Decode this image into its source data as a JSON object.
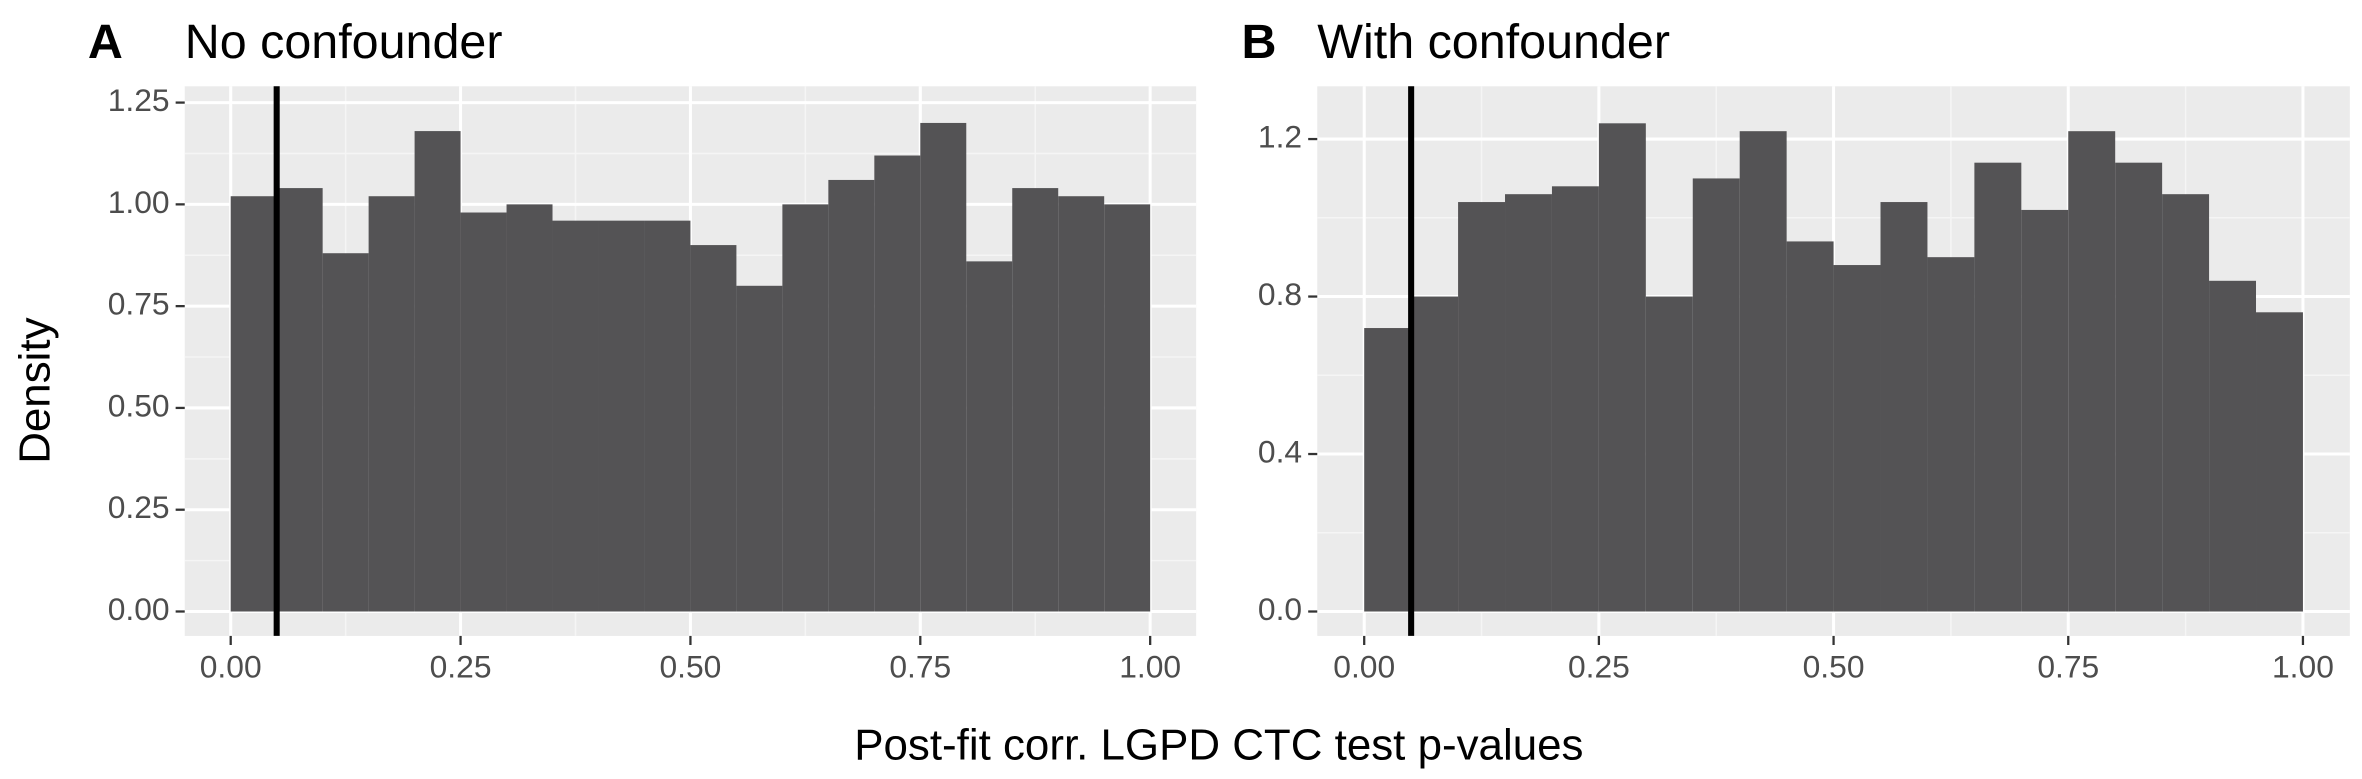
{
  "shared": {
    "x_label": "Post-fit corr. LGPD CTC test p-values",
    "y_label": "Density"
  },
  "chart_data": [
    {
      "type": "histogram",
      "tag": "A",
      "title": "No confounder",
      "color": "#545355",
      "grid": true,
      "bins": [
        0,
        0.05,
        0.1,
        0.15,
        0.2,
        0.25,
        0.3,
        0.35,
        0.4,
        0.45,
        0.5,
        0.55,
        0.6,
        0.65,
        0.7,
        0.75,
        0.8,
        0.85,
        0.9,
        0.95,
        1.0
      ],
      "values": [
        1.02,
        1.04,
        0.88,
        1.02,
        1.18,
        0.98,
        1.0,
        0.96,
        0.96,
        0.96,
        0.9,
        0.8,
        1.0,
        1.06,
        1.12,
        1.2,
        0.86,
        1.04,
        1.02,
        1.0
      ],
      "reference_line": 0.05,
      "xlim": [
        -0.05,
        1.05
      ],
      "ylim": [
        -0.06,
        1.29
      ],
      "xticks": [
        {
          "value": 0,
          "label": "0.00"
        },
        {
          "value": 0.25,
          "label": "0.25"
        },
        {
          "value": 0.5,
          "label": "0.50"
        },
        {
          "value": 0.75,
          "label": "0.75"
        },
        {
          "value": 1,
          "label": "1.00"
        }
      ],
      "yticks": [
        {
          "value": 0,
          "label": "0.00"
        },
        {
          "value": 0.25,
          "label": "0.25"
        },
        {
          "value": 0.5,
          "label": "0.50"
        },
        {
          "value": 0.75,
          "label": "0.75"
        },
        {
          "value": 1,
          "label": "1.00"
        },
        {
          "value": 1.25,
          "label": "1.25"
        }
      ]
    },
    {
      "type": "histogram",
      "tag": "B",
      "title": "With confounder",
      "color": "#545355",
      "grid": true,
      "bins": [
        0,
        0.05,
        0.1,
        0.15,
        0.2,
        0.25,
        0.3,
        0.35,
        0.4,
        0.45,
        0.5,
        0.55,
        0.6,
        0.65,
        0.7,
        0.75,
        0.8,
        0.85,
        0.9,
        0.95,
        1.0
      ],
      "values": [
        0.72,
        0.8,
        1.04,
        1.06,
        1.08,
        1.24,
        0.8,
        1.1,
        1.22,
        0.94,
        0.88,
        1.04,
        0.9,
        1.14,
        1.02,
        1.22,
        1.14,
        1.06,
        0.84,
        0.76
      ],
      "reference_line": 0.05,
      "xlim": [
        -0.05,
        1.05
      ],
      "ylim": [
        -0.062,
        1.334
      ],
      "xticks": [
        {
          "value": 0,
          "label": "0.00"
        },
        {
          "value": 0.25,
          "label": "0.25"
        },
        {
          "value": 0.5,
          "label": "0.50"
        },
        {
          "value": 0.75,
          "label": "0.75"
        },
        {
          "value": 1,
          "label": "1.00"
        }
      ],
      "yticks": [
        {
          "value": 0,
          "label": "0.0"
        },
        0.4,
        0.8,
        1.2
      ]
    }
  ]
}
